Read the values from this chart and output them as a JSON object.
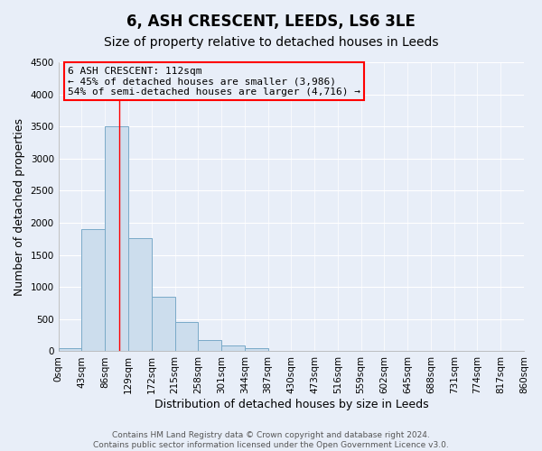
{
  "title": "6, ASH CRESCENT, LEEDS, LS6 3LE",
  "subtitle": "Size of property relative to detached houses in Leeds",
  "xlabel": "Distribution of detached houses by size in Leeds",
  "ylabel": "Number of detached properties",
  "bin_labels": [
    "0sqm",
    "43sqm",
    "86sqm",
    "129sqm",
    "172sqm",
    "215sqm",
    "258sqm",
    "301sqm",
    "344sqm",
    "387sqm",
    "430sqm",
    "473sqm",
    "516sqm",
    "559sqm",
    "602sqm",
    "645sqm",
    "688sqm",
    "731sqm",
    "774sqm",
    "817sqm",
    "860sqm"
  ],
  "bin_edges": [
    0,
    43,
    86,
    129,
    172,
    215,
    258,
    301,
    344,
    387,
    430,
    473,
    516,
    559,
    602,
    645,
    688,
    731,
    774,
    817,
    860
  ],
  "bar_heights": [
    50,
    1900,
    3500,
    1760,
    850,
    450,
    170,
    90,
    50,
    0,
    0,
    0,
    0,
    0,
    0,
    0,
    0,
    0,
    0,
    0
  ],
  "bar_color": "#ccdded",
  "bar_edge_color": "#7aaac8",
  "redline_x": 112,
  "ylim": [
    0,
    4500
  ],
  "yticks": [
    0,
    500,
    1000,
    1500,
    2000,
    2500,
    3000,
    3500,
    4000,
    4500
  ],
  "annotation_title": "6 ASH CRESCENT: 112sqm",
  "annotation_line1": "← 45% of detached houses are smaller (3,986)",
  "annotation_line2": "54% of semi-detached houses are larger (4,716) →",
  "footer_line1": "Contains HM Land Registry data © Crown copyright and database right 2024.",
  "footer_line2": "Contains public sector information licensed under the Open Government Licence v3.0.",
  "background_color": "#e8eef8",
  "grid_color": "#ffffff",
  "title_fontsize": 12,
  "subtitle_fontsize": 10,
  "axis_label_fontsize": 9,
  "tick_fontsize": 7.5,
  "footer_fontsize": 6.5
}
